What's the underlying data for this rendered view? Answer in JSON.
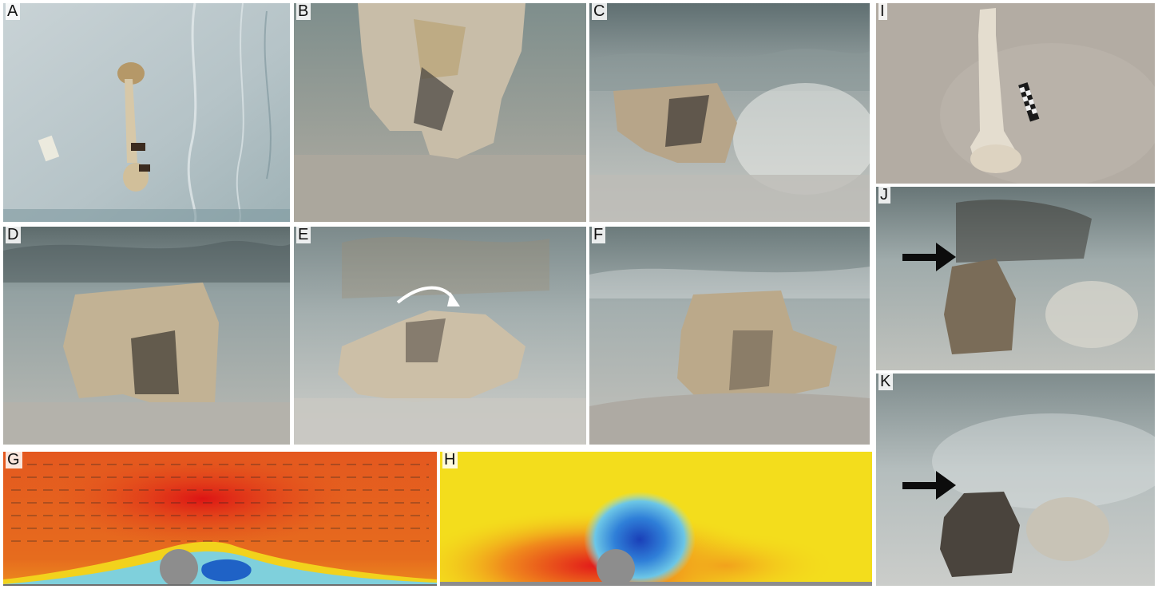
{
  "panels": {
    "A": {
      "label": "A"
    },
    "B": {
      "label": "B"
    },
    "C": {
      "label": "C"
    },
    "D": {
      "label": "D"
    },
    "E": {
      "label": "E"
    },
    "F": {
      "label": "F"
    },
    "G": {
      "label": "G"
    },
    "H": {
      "label": "H"
    },
    "I": {
      "label": "I"
    },
    "J": {
      "label": "J"
    },
    "K": {
      "label": "K"
    }
  },
  "colors": {
    "background": "#ffffff",
    "sand": "#a9a7a1",
    "bone": "#d9cdb6",
    "water": "#9fb0b4",
    "cfd_high": "#e21b1b",
    "cfd_mid": "#f4d11a",
    "cfd_low": "#1e66c8",
    "obstacle": "#8d8d8d"
  },
  "icons": {
    "E": "curved-arrow-icon",
    "J": "black-arrow-icon",
    "K": "black-arrow-icon",
    "I": "scale-bar-icon"
  }
}
